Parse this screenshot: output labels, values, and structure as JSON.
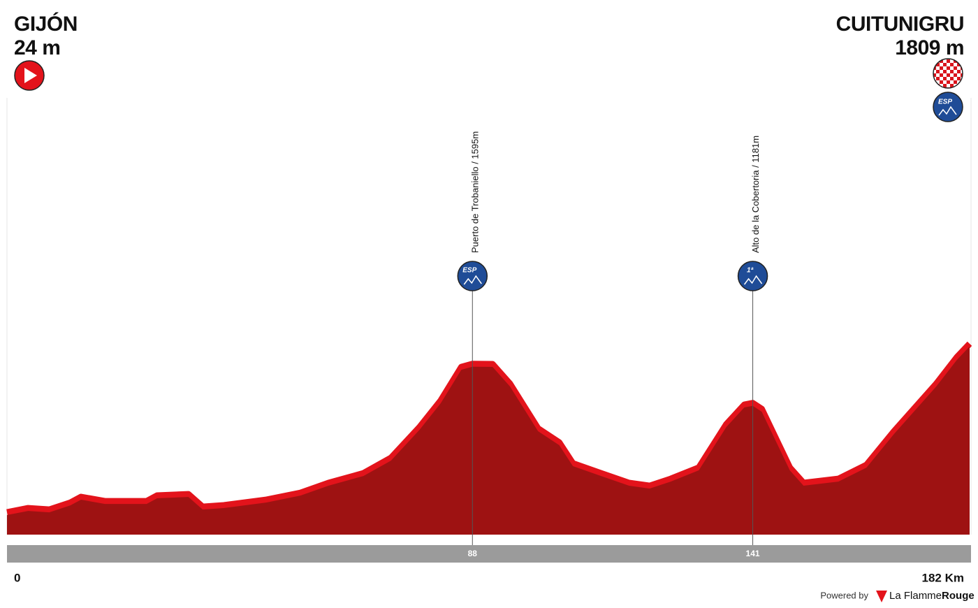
{
  "chart_data": {
    "type": "area",
    "start": {
      "name": "GIJÓN",
      "altitude": "24 m"
    },
    "finish": {
      "name": "CUITUNIGRU",
      "altitude": "1809 m",
      "category": "ESP"
    },
    "x": [
      0,
      4,
      8,
      12,
      14,
      18.5,
      26.4,
      28.4,
      34.3,
      37,
      41,
      49,
      55.5,
      60.8,
      67.4,
      72.6,
      78,
      82,
      85.9,
      88,
      91.8,
      95.1,
      100.4,
      104.4,
      107,
      112.3,
      117.6,
      121.5,
      125.5,
      130.8,
      136,
      139.4,
      141,
      142.7,
      148,
      150.6,
      157.2,
      162.5,
      167.7,
      175.7,
      179.6,
      182
    ],
    "values": [
      24,
      68,
      53,
      127,
      187,
      142,
      142,
      202,
      216,
      83,
      98,
      157,
      231,
      335,
      438,
      601,
      927,
      1208,
      1563,
      1595,
      1593,
      1386,
      912,
      764,
      542,
      438,
      335,
      305,
      379,
      498,
      956,
      1164,
      1181,
      1119,
      498,
      335,
      379,
      527,
      882,
      1386,
      1667,
      1809
    ],
    "xlim": [
      0,
      182
    ],
    "ylim": [
      -220,
      4405
    ],
    "xticks": [
      0,
      {
        "value": 182,
        "label": "182 Km"
      }
    ],
    "color": "#9e1212",
    "edge_color": "#e3131b",
    "climbs": [
      {
        "name": "Puerto de Trobaniello / 1595m",
        "km": 88,
        "category": "ESP"
      },
      {
        "name": "Alto de la Cobertoria / 1181m",
        "km": 141,
        "category": "1ª"
      }
    ],
    "footer": {
      "powered": "Powered by",
      "brand": "La Flamme",
      "brand_accent": "Rouge"
    }
  }
}
